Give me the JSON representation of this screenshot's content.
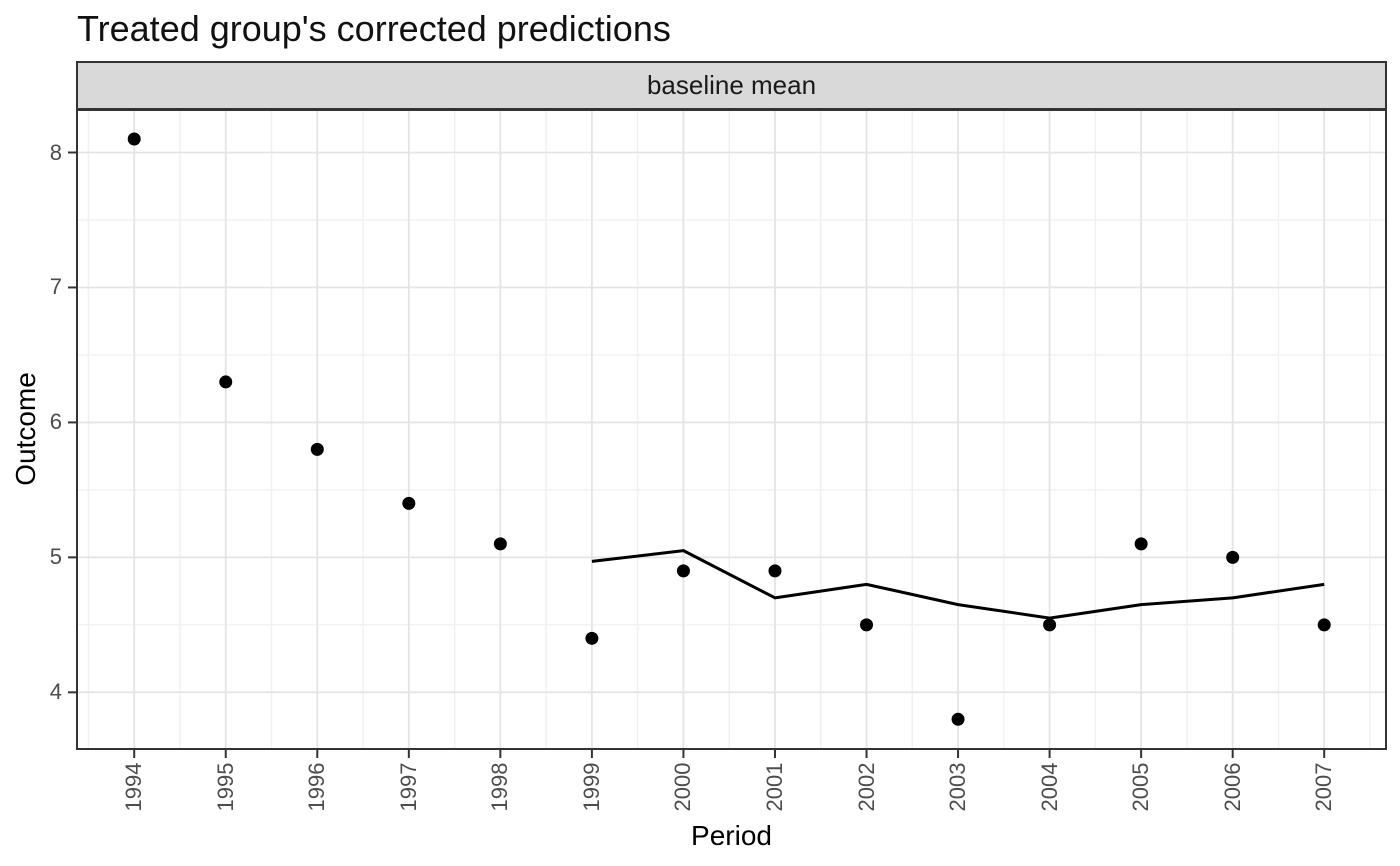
{
  "chart_data": {
    "type": "scatter",
    "title": "Treated group's corrected predictions",
    "facet_label": "baseline mean",
    "xlabel": "Period",
    "ylabel": "Outcome",
    "x_ticks": [
      1994,
      1995,
      1996,
      1997,
      1998,
      1999,
      2000,
      2001,
      2002,
      2003,
      2004,
      2005,
      2006,
      2007
    ],
    "y_ticks": [
      4,
      5,
      6,
      7,
      8
    ],
    "xlim": [
      1993.375,
      2007.675
    ],
    "ylim": [
      3.58,
      8.315
    ],
    "grid": true,
    "legend": "none",
    "series": [
      {
        "name": "observed outcome",
        "type": "points",
        "color": "#000000",
        "x": [
          1994,
          1995,
          1996,
          1997,
          1998,
          1999,
          2000,
          2001,
          2002,
          2003,
          2004,
          2005,
          2006,
          2007
        ],
        "y": [
          8.1,
          6.3,
          5.8,
          5.4,
          5.1,
          4.4,
          4.9,
          4.9,
          4.5,
          3.8,
          4.5,
          5.1,
          5.0,
          4.5
        ]
      },
      {
        "name": "corrected prediction",
        "type": "line",
        "color": "#000000",
        "x": [
          1999,
          2000,
          2001,
          2002,
          2003,
          2004,
          2005,
          2006,
          2007
        ],
        "y": [
          4.97,
          5.05,
          4.7,
          4.8,
          4.65,
          4.55,
          4.65,
          4.7,
          4.8
        ]
      }
    ],
    "style": {
      "strip_bg": "#d9d9d9",
      "strip_border": "#333333",
      "panel_bg": "#ffffff",
      "panel_border": "#333333",
      "grid_major": "#e4e4e4",
      "grid_minor": "#f0f0f0",
      "tick_color": "#333333",
      "axis_text_color": "#4d4d4d",
      "title_color": "#111111",
      "axis_title_color": "#000000"
    }
  }
}
